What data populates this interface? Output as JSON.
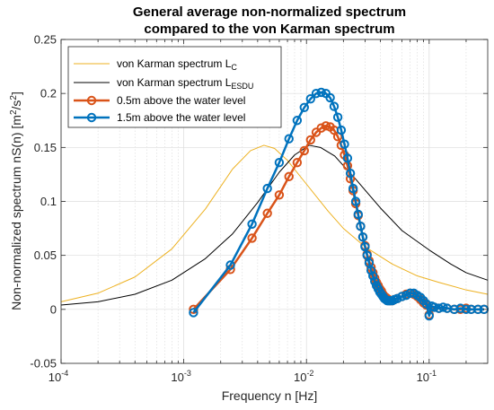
{
  "chart_data": {
    "type": "line",
    "title_lines": [
      "General average non-normalized spectrum",
      "compared to the von Karman spectrum"
    ],
    "xlabel": "Frequency n [Hz]",
    "ylabel_main": "Non-normalized spectrum nS(n) [m",
    "ylabel_sup1": "2",
    "ylabel_mid": "/s",
    "ylabel_sup2": "2",
    "ylabel_end": "]",
    "xscale": "log",
    "xlim": [
      0.0001,
      0.3
    ],
    "ylim": [
      -0.05,
      0.25
    ],
    "grid": true,
    "legend_position": "top-left",
    "x_tick_labels": [
      {
        "base": "10",
        "exp": "-4",
        "value": 0.0001
      },
      {
        "base": "10",
        "exp": "-3",
        "value": 0.001
      },
      {
        "base": "10",
        "exp": "-2",
        "value": 0.01
      },
      {
        "base": "10",
        "exp": "-1",
        "value": 0.1
      }
    ],
    "y_ticks": [
      -0.05,
      0,
      0.05,
      0.1,
      0.15,
      0.2,
      0.25
    ],
    "y_tick_labels": [
      "-0.05",
      "0",
      "0.05",
      "0.1",
      "0.15",
      "0.2",
      "0.25"
    ],
    "series": [
      {
        "name_main": "von Karman spectrum L",
        "name_sub": "C",
        "color": "#EDB120",
        "marker": "none",
        "peak_x": 0.0045,
        "peak_y": 0.152,
        "x": [
          0.0001,
          0.0002,
          0.0004,
          0.0008,
          0.0015,
          0.0025,
          0.0035,
          0.0045,
          0.0055,
          0.007,
          0.01,
          0.015,
          0.02,
          0.03,
          0.05,
          0.08,
          0.12,
          0.2,
          0.3
        ],
        "y": [
          0.007,
          0.015,
          0.03,
          0.056,
          0.093,
          0.13,
          0.147,
          0.152,
          0.149,
          0.138,
          0.116,
          0.091,
          0.075,
          0.058,
          0.042,
          0.031,
          0.025,
          0.018,
          0.014
        ]
      },
      {
        "name_main": "von Karman spectrum L",
        "name_sub": "ESDU",
        "color": "#000000",
        "marker": "none",
        "peak_x": 0.0105,
        "peak_y": 0.152,
        "x": [
          0.0001,
          0.0002,
          0.0004,
          0.0008,
          0.0015,
          0.0025,
          0.004,
          0.006,
          0.008,
          0.0105,
          0.013,
          0.017,
          0.025,
          0.04,
          0.06,
          0.1,
          0.15,
          0.2,
          0.3
        ],
        "y": [
          0.004,
          0.007,
          0.014,
          0.027,
          0.047,
          0.07,
          0.099,
          0.127,
          0.143,
          0.152,
          0.15,
          0.142,
          0.121,
          0.094,
          0.073,
          0.055,
          0.042,
          0.034,
          0.027
        ]
      },
      {
        "name": "0.5m above the water level",
        "color": "#D95319",
        "marker": "o",
        "x": [
          0.0012,
          0.0024,
          0.0036,
          0.0048,
          0.006,
          0.0072,
          0.0084,
          0.0096,
          0.0108,
          0.012,
          0.0132,
          0.0144,
          0.0156,
          0.0168,
          0.018,
          0.0192,
          0.0204,
          0.0216,
          0.0228,
          0.024,
          0.0252,
          0.0264,
          0.0276,
          0.0288,
          0.03,
          0.0312,
          0.0324,
          0.0336,
          0.0348,
          0.036,
          0.0372,
          0.0384,
          0.0396,
          0.0408,
          0.042,
          0.0432,
          0.0444,
          0.0456,
          0.0468,
          0.048,
          0.05,
          0.052,
          0.055,
          0.06,
          0.065,
          0.07,
          0.075,
          0.08,
          0.085,
          0.09,
          0.095,
          0.1,
          0.11,
          0.12,
          0.14,
          0.16,
          0.18,
          0.2,
          0.22,
          0.25,
          0.28
        ],
        "y": [
          0.0,
          0.037,
          0.066,
          0.089,
          0.106,
          0.123,
          0.136,
          0.147,
          0.157,
          0.164,
          0.168,
          0.17,
          0.169,
          0.166,
          0.16,
          0.152,
          0.143,
          0.133,
          0.121,
          0.11,
          0.098,
          0.087,
          0.077,
          0.067,
          0.059,
          0.051,
          0.045,
          0.039,
          0.034,
          0.029,
          0.025,
          0.022,
          0.019,
          0.017,
          0.014,
          0.012,
          0.011,
          0.01,
          0.009,
          0.008,
          0.008,
          0.009,
          0.01,
          0.012,
          0.014,
          0.015,
          0.014,
          0.012,
          0.009,
          0.006,
          0.004,
          -0.005,
          0.002,
          0.001,
          0.001,
          0.0,
          0.0,
          0.001,
          0.0,
          0.0,
          0.0
        ]
      },
      {
        "name": "1.5m above the water level",
        "color": "#0072BD",
        "marker": "o",
        "x": [
          0.0012,
          0.0024,
          0.0036,
          0.0048,
          0.006,
          0.0072,
          0.0084,
          0.0096,
          0.0108,
          0.012,
          0.0132,
          0.0144,
          0.0156,
          0.0168,
          0.018,
          0.0192,
          0.0204,
          0.0216,
          0.0228,
          0.024,
          0.0252,
          0.0264,
          0.0276,
          0.0288,
          0.03,
          0.0312,
          0.0324,
          0.0336,
          0.0348,
          0.036,
          0.0372,
          0.0384,
          0.0396,
          0.0408,
          0.042,
          0.0432,
          0.0444,
          0.0456,
          0.0468,
          0.048,
          0.05,
          0.052,
          0.055,
          0.06,
          0.065,
          0.07,
          0.075,
          0.08,
          0.085,
          0.09,
          0.095,
          0.1,
          0.105,
          0.11,
          0.12,
          0.13,
          0.14,
          0.16,
          0.18,
          0.2,
          0.22,
          0.25,
          0.28
        ],
        "y": [
          -0.003,
          0.041,
          0.079,
          0.112,
          0.136,
          0.158,
          0.175,
          0.187,
          0.195,
          0.2,
          0.201,
          0.2,
          0.196,
          0.188,
          0.178,
          0.166,
          0.153,
          0.14,
          0.126,
          0.112,
          0.1,
          0.088,
          0.077,
          0.067,
          0.058,
          0.05,
          0.043,
          0.036,
          0.031,
          0.026,
          0.022,
          0.019,
          0.016,
          0.014,
          0.012,
          0.01,
          0.009,
          0.008,
          0.008,
          0.008,
          0.008,
          0.009,
          0.01,
          0.012,
          0.013,
          0.015,
          0.015,
          0.013,
          0.011,
          0.008,
          0.005,
          -0.006,
          0.003,
          0.002,
          0.001,
          0.002,
          0.001,
          0.0,
          0.001,
          0.0,
          0.0,
          0.0,
          0.0
        ]
      }
    ]
  }
}
